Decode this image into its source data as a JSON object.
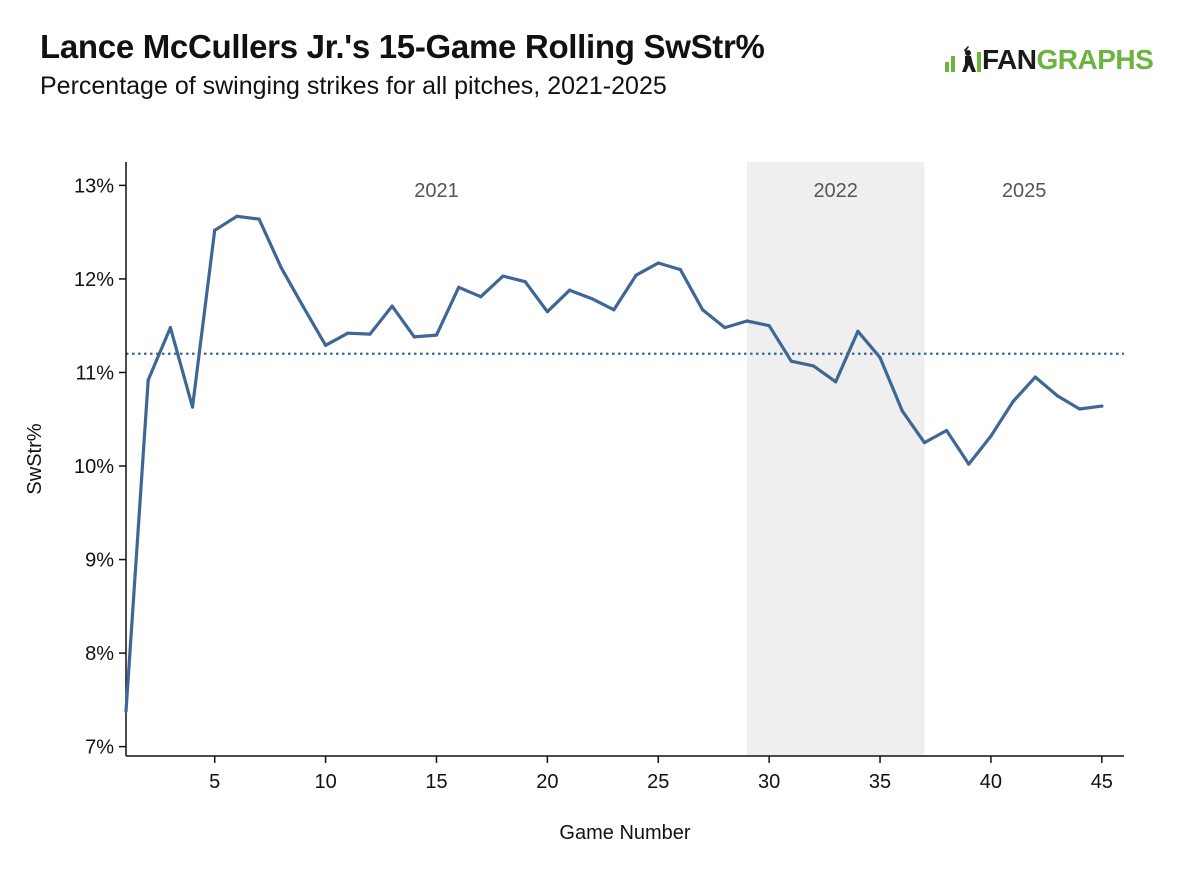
{
  "header": {
    "title": "Lance McCullers Jr.'s 15-Game Rolling SwStr%",
    "subtitle": "Percentage of swinging strikes for all pitches, 2021-2025"
  },
  "logo": {
    "fan": "FAN",
    "graphs": "GRAPHS",
    "colors": {
      "fan": "#1a1a1a",
      "graphs": "#6cb33f"
    }
  },
  "chart_data": {
    "type": "line",
    "xlabel": "Game Number",
    "ylabel": "SwStr%",
    "xlim": [
      1,
      46
    ],
    "ylim": [
      6.9,
      13.25
    ],
    "xticks": [
      5,
      10,
      15,
      20,
      25,
      30,
      35,
      40,
      45
    ],
    "xtick_labels": [
      "5",
      "10",
      "15",
      "20",
      "25",
      "30",
      "35",
      "40",
      "45"
    ],
    "yticks": [
      7,
      8,
      9,
      10,
      11,
      12,
      13
    ],
    "ytick_labels": [
      "7%",
      "8%",
      "9%",
      "10%",
      "11%",
      "12%",
      "13%"
    ],
    "grid": false,
    "line_color": "#3e6796",
    "reference_line": {
      "value": 11.2,
      "style": "dotted",
      "color": "#3e6796"
    },
    "periods": [
      {
        "label": "2021",
        "x_start": 1,
        "x_end": 29,
        "shaded": false
      },
      {
        "label": "2022",
        "x_start": 29,
        "x_end": 37,
        "shaded": true,
        "color": "#efefef"
      },
      {
        "label": "2025",
        "x_start": 37,
        "x_end": 46,
        "shaded": false
      }
    ],
    "x": [
      1,
      2,
      3,
      4,
      5,
      6,
      7,
      8,
      9,
      10,
      11,
      12,
      13,
      14,
      15,
      16,
      17,
      18,
      19,
      20,
      21,
      22,
      23,
      24,
      25,
      26,
      27,
      28,
      29,
      30,
      31,
      32,
      33,
      34,
      35,
      36,
      37,
      38,
      39,
      40,
      41,
      42,
      43,
      44,
      45
    ],
    "series": [
      {
        "values": [
          7.38,
          10.92,
          11.48,
          10.63,
          12.52,
          12.67,
          12.64,
          12.12,
          11.7,
          11.29,
          11.42,
          11.41,
          11.71,
          11.38,
          11.4,
          11.91,
          11.81,
          12.03,
          11.97,
          11.65,
          11.88,
          11.79,
          11.67,
          12.04,
          12.17,
          12.1,
          11.67,
          11.48,
          11.55,
          11.5,
          11.12,
          11.07,
          10.9,
          11.44,
          11.16,
          10.59,
          10.25,
          10.38,
          10.02,
          10.32,
          10.69,
          10.95,
          10.75,
          10.61,
          10.64
        ]
      }
    ]
  }
}
